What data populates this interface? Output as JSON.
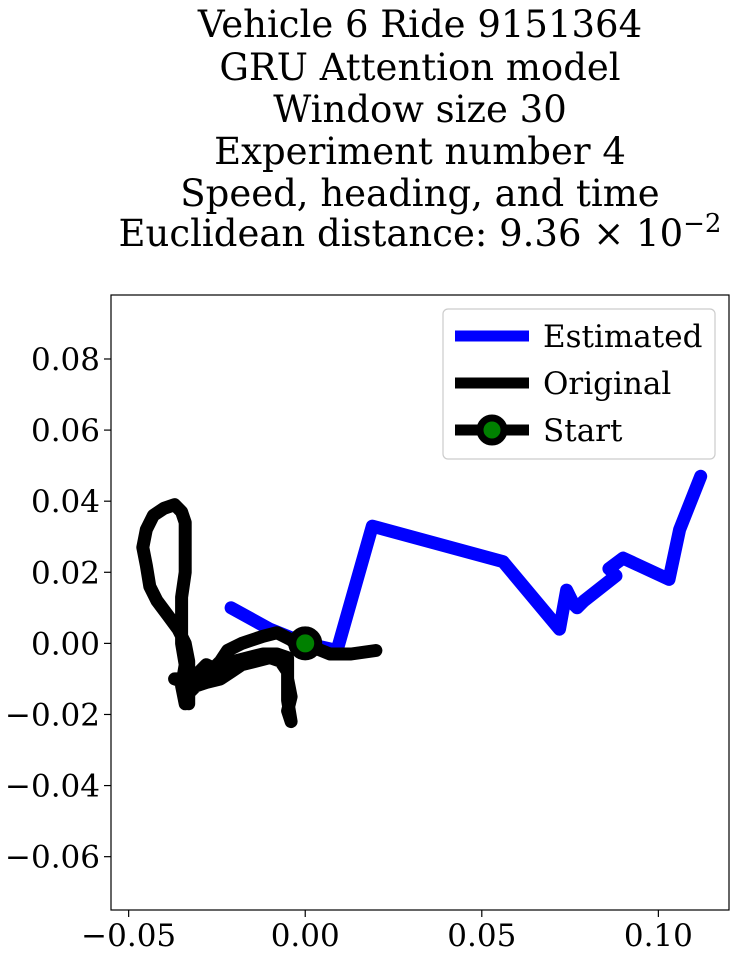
{
  "chart_data": {
    "type": "line",
    "title_lines": [
      "Vehicle 6 Ride 9151364",
      "GRU Attention model",
      "Window size 30",
      "Experiment number 4",
      "Speed, heading, and time"
    ],
    "title_metric_prefix": "Euclidean distance: ",
    "title_metric_mantissa": "9.36",
    "title_metric_base": "10",
    "title_metric_exponent": "−2",
    "xlabel": "",
    "ylabel": "",
    "xlim": [
      -0.055,
      0.12
    ],
    "ylim": [
      -0.075,
      0.098
    ],
    "x_ticks": [
      -0.05,
      0.0,
      0.05,
      0.1
    ],
    "x_tick_labels": [
      "−0.05",
      "0.00",
      "0.05",
      "0.10"
    ],
    "y_ticks": [
      0.08,
      0.06,
      0.04,
      0.02,
      0.0,
      -0.02,
      -0.04,
      -0.06
    ],
    "y_tick_labels": [
      "0.08",
      "0.06",
      "0.04",
      "0.02",
      "0.00",
      "−0.02",
      "−0.04",
      "−0.06"
    ],
    "grid": false,
    "legend_position": "top-right",
    "series": [
      {
        "name": "Estimated",
        "color": "#0000ff",
        "points": [
          [
            -0.021,
            0.01
          ],
          [
            -0.01,
            0.004
          ],
          [
            0.0,
            0.0
          ],
          [
            0.009,
            -0.002
          ],
          [
            0.019,
            0.033
          ],
          [
            0.056,
            0.023
          ],
          [
            0.072,
            0.004
          ],
          [
            0.074,
            0.015
          ],
          [
            0.076,
            0.011
          ],
          [
            0.077,
            0.01
          ],
          [
            0.079,
            0.012
          ],
          [
            0.088,
            0.019
          ],
          [
            0.086,
            0.021
          ],
          [
            0.09,
            0.024
          ],
          [
            0.103,
            0.018
          ],
          [
            0.106,
            0.032
          ],
          [
            0.112,
            0.047
          ]
        ]
      },
      {
        "name": "Original",
        "color": "#000000",
        "points": [
          [
            0.02,
            -0.002
          ],
          [
            0.013,
            -0.003
          ],
          [
            0.007,
            -0.003
          ],
          [
            0.002,
            -0.001
          ],
          [
            -0.002,
            -0.001
          ],
          [
            -0.004,
            0.001
          ],
          [
            -0.008,
            0.003
          ],
          [
            -0.012,
            0.002
          ],
          [
            -0.018,
            0.0
          ],
          [
            -0.022,
            -0.002
          ],
          [
            -0.024,
            -0.005
          ],
          [
            -0.026,
            -0.007
          ],
          [
            -0.028,
            -0.006
          ],
          [
            -0.03,
            -0.008
          ],
          [
            -0.032,
            -0.009
          ],
          [
            -0.034,
            -0.011
          ],
          [
            -0.037,
            -0.01
          ],
          [
            -0.032,
            -0.01
          ],
          [
            -0.029,
            -0.008
          ],
          [
            -0.026,
            -0.008
          ],
          [
            -0.024,
            -0.007
          ],
          [
            -0.022,
            -0.006
          ],
          [
            -0.02,
            -0.005
          ],
          [
            -0.016,
            -0.004
          ],
          [
            -0.012,
            -0.003
          ],
          [
            -0.008,
            -0.003
          ],
          [
            -0.005,
            -0.004
          ],
          [
            -0.005,
            -0.01
          ],
          [
            -0.004,
            -0.015
          ],
          [
            -0.005,
            -0.019
          ],
          [
            -0.004,
            -0.022
          ],
          [
            -0.005,
            -0.016
          ],
          [
            -0.005,
            -0.008
          ],
          [
            -0.007,
            -0.005
          ],
          [
            -0.01,
            -0.004
          ],
          [
            -0.014,
            -0.005
          ],
          [
            -0.018,
            -0.006
          ],
          [
            -0.021,
            -0.008
          ],
          [
            -0.024,
            -0.01
          ],
          [
            -0.028,
            -0.011
          ],
          [
            -0.031,
            -0.012
          ],
          [
            -0.033,
            -0.014
          ],
          [
            -0.033,
            -0.017
          ],
          [
            -0.034,
            -0.015
          ],
          [
            -0.033,
            -0.01
          ],
          [
            -0.033,
            -0.005
          ],
          [
            -0.034,
            0.0
          ],
          [
            -0.036,
            0.004
          ],
          [
            -0.039,
            0.008
          ],
          [
            -0.042,
            0.012
          ],
          [
            -0.044,
            0.016
          ],
          [
            -0.045,
            0.022
          ],
          [
            -0.046,
            0.027
          ],
          [
            -0.045,
            0.032
          ],
          [
            -0.043,
            0.036
          ],
          [
            -0.04,
            0.038
          ],
          [
            -0.037,
            0.039
          ],
          [
            -0.035,
            0.037
          ],
          [
            -0.034,
            0.034
          ],
          [
            -0.034,
            0.027
          ],
          [
            -0.034,
            0.02
          ],
          [
            -0.035,
            0.013
          ],
          [
            -0.035,
            0.007
          ],
          [
            -0.035,
            0.0
          ],
          [
            -0.034,
            -0.006
          ],
          [
            -0.035,
            -0.012
          ],
          [
            -0.034,
            -0.017
          ],
          [
            -0.034,
            -0.013
          ]
        ]
      },
      {
        "name": "Start",
        "color": "#000000",
        "marker_face": "#008000",
        "points": [
          [
            0.0,
            0.0
          ]
        ]
      }
    ]
  }
}
